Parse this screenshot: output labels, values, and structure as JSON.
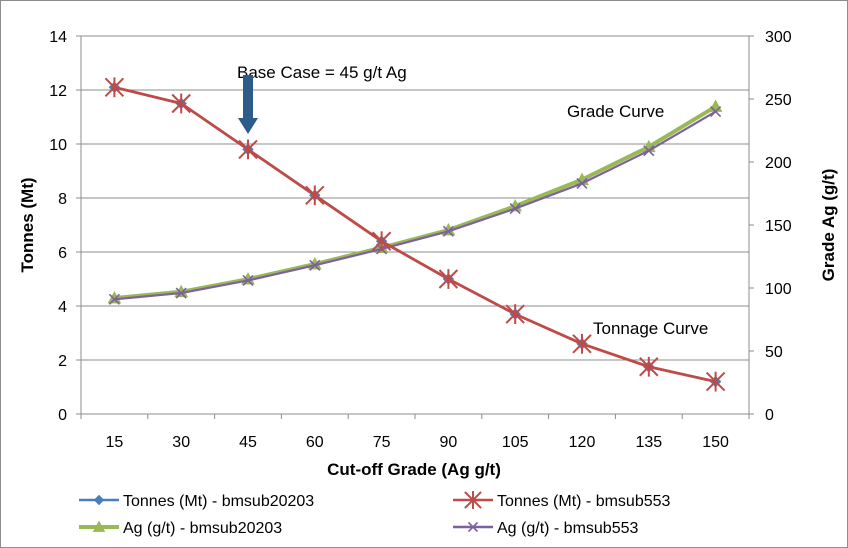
{
  "chart_data": {
    "type": "line",
    "x": [
      15,
      30,
      45,
      60,
      75,
      90,
      105,
      120,
      135,
      150
    ],
    "xlabel": "Cut-off Grade (Ag g/t)",
    "ylabel": "Tonnes (Mt)",
    "y2label": "Grade Ag (g/t)",
    "ylim": [
      0,
      14
    ],
    "y2lim": [
      0,
      300
    ],
    "yticks": [
      0,
      2,
      4,
      6,
      8,
      10,
      12,
      14
    ],
    "y2ticks": [
      0,
      50,
      100,
      150,
      200,
      250,
      300
    ],
    "grid": "horizontal",
    "legend_position": "bottom",
    "series": [
      {
        "name": "Tonnes (Mt) - bmsub20203",
        "axis": "left",
        "color": "#4a7ebb",
        "marker": "diamond",
        "values": [
          12.1,
          11.5,
          9.8,
          8.1,
          6.4,
          5.0,
          3.7,
          2.6,
          1.75,
          1.2
        ]
      },
      {
        "name": "Tonnes (Mt) - bmsub553",
        "axis": "left",
        "color": "#be4b48",
        "marker": "star",
        "values": [
          12.1,
          11.5,
          9.8,
          8.1,
          6.4,
          5.0,
          3.7,
          2.6,
          1.75,
          1.2
        ]
      },
      {
        "name": "Ag (g/t) - bmsub20203",
        "axis": "right",
        "color": "#98b954",
        "marker": "triangle",
        "values": [
          92,
          97,
          107,
          119,
          132,
          146,
          165,
          186,
          212,
          244
        ]
      },
      {
        "name": "Ag (g/t) - bmsub553",
        "axis": "right",
        "color": "#7d60a0",
        "marker": "x",
        "values": [
          91,
          96,
          106,
          118,
          131,
          145,
          163,
          183,
          209,
          240
        ]
      }
    ],
    "annotations": {
      "base_case": {
        "text": "Base Case = 45 g/t Ag",
        "x": 45,
        "arrow_color": "#2e5c8a"
      },
      "grade_curve": {
        "text": "Grade Curve"
      },
      "tonnage_curve": {
        "text": "Tonnage Curve"
      }
    }
  }
}
